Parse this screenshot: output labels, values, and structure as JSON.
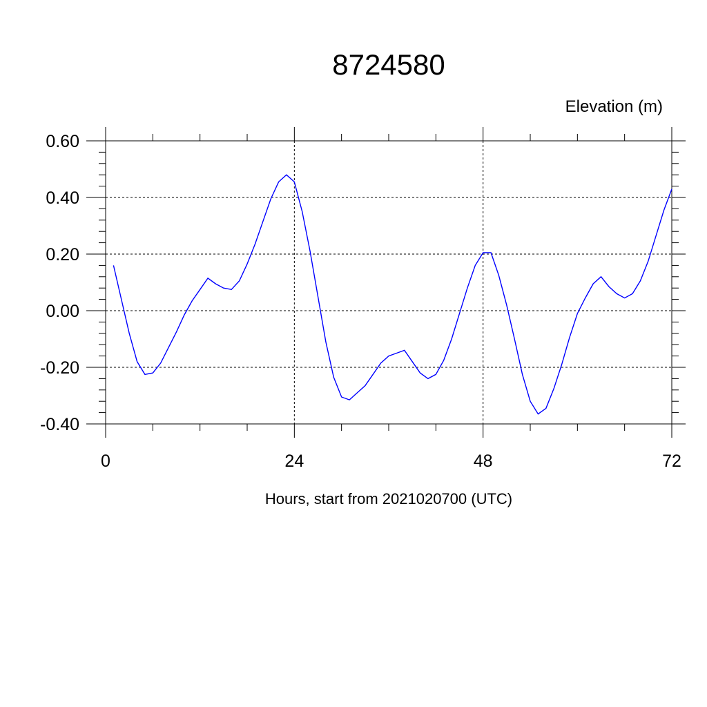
{
  "chart_data": {
    "type": "line",
    "title": "8724580",
    "ylabel": "Elevation (m)",
    "xlabel": "Hours, start from 2021020700 (UTC)",
    "xlim": [
      0,
      72
    ],
    "ylim": [
      -0.4,
      0.6
    ],
    "x_ticks": [
      0,
      24,
      48,
      72
    ],
    "x_tick_labels": [
      "0",
      "24",
      "48",
      "72"
    ],
    "y_ticks": [
      -0.4,
      -0.2,
      0.0,
      0.2,
      0.4,
      0.6
    ],
    "y_tick_labels": [
      "-0.40",
      "-0.20",
      "0.00",
      "0.20",
      "0.40",
      "0.60"
    ],
    "grid": true,
    "line_color": "#0000ff",
    "series": [
      {
        "x": [
          1,
          2,
          3,
          4,
          5,
          6,
          7,
          8,
          9,
          10,
          11,
          12,
          13,
          14,
          15,
          16,
          17,
          18,
          19,
          20,
          21,
          22,
          23,
          24,
          25,
          26,
          27,
          28,
          29,
          30,
          31,
          32,
          33,
          34,
          35,
          36,
          37,
          38,
          39,
          40,
          41,
          42,
          43,
          44,
          45,
          46,
          47,
          48,
          49,
          50,
          51,
          52,
          53,
          54,
          55,
          56,
          57,
          58,
          59,
          60,
          61,
          62,
          63,
          64,
          65,
          66,
          67,
          68,
          69,
          70,
          71,
          72
        ],
        "values": [
          0.16,
          0.04,
          -0.08,
          -0.18,
          -0.225,
          -0.22,
          -0.185,
          -0.13,
          -0.075,
          -0.015,
          0.035,
          0.075,
          0.115,
          0.095,
          0.08,
          0.075,
          0.105,
          0.165,
          0.235,
          0.315,
          0.395,
          0.455,
          0.48,
          0.455,
          0.35,
          0.21,
          0.05,
          -0.11,
          -0.235,
          -0.305,
          -0.315,
          -0.29,
          -0.265,
          -0.225,
          -0.185,
          -0.16,
          -0.15,
          -0.14,
          -0.18,
          -0.22,
          -0.24,
          -0.225,
          -0.175,
          -0.1,
          -0.01,
          0.08,
          0.16,
          0.205,
          0.205,
          0.125,
          0.02,
          -0.1,
          -0.225,
          -0.32,
          -0.365,
          -0.345,
          -0.275,
          -0.19,
          -0.095,
          -0.01,
          0.045,
          0.095,
          0.12,
          0.085,
          0.06,
          0.045,
          0.06,
          0.105,
          0.175,
          0.265,
          0.355,
          0.43
        ]
      }
    ]
  }
}
